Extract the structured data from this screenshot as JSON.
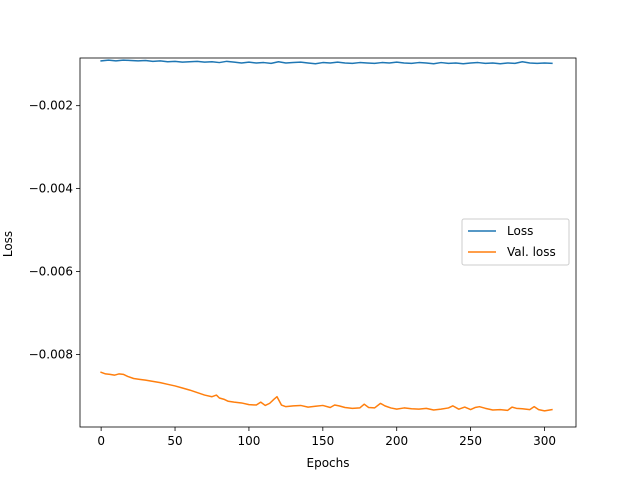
{
  "chart_data": {
    "type": "line",
    "title": "",
    "xlabel": "Epochs",
    "ylabel": "Loss",
    "xlim": [
      -14.3,
      321.3
    ],
    "ylim": [
      -0.00975,
      -0.00085
    ],
    "x_ticks": [
      0,
      50,
      100,
      150,
      200,
      250,
      300
    ],
    "x_tick_labels": [
      "0",
      "50",
      "100",
      "150",
      "200",
      "250",
      "300"
    ],
    "y_ticks": [
      -0.002,
      -0.004,
      -0.006,
      -0.008
    ],
    "y_tick_labels": [
      "−0.002",
      "−0.004",
      "−0.006",
      "−0.008"
    ],
    "grid": false,
    "legend_position": "center-right",
    "series": [
      {
        "name": "Loss",
        "color": "#1f77b4",
        "x": [
          0,
          5,
          10,
          15,
          20,
          25,
          30,
          35,
          40,
          45,
          50,
          55,
          60,
          65,
          70,
          75,
          80,
          85,
          90,
          95,
          100,
          105,
          110,
          115,
          120,
          125,
          130,
          135,
          140,
          145,
          150,
          155,
          160,
          165,
          170,
          175,
          180,
          185,
          190,
          195,
          200,
          205,
          210,
          215,
          220,
          225,
          230,
          235,
          240,
          245,
          250,
          255,
          260,
          265,
          270,
          275,
          280,
          285,
          290,
          295,
          300,
          305
        ],
        "values": [
          -0.00092,
          -0.0009,
          -0.00092,
          -0.0009,
          -0.00091,
          -0.00092,
          -0.00091,
          -0.00093,
          -0.00092,
          -0.00094,
          -0.00093,
          -0.00095,
          -0.00094,
          -0.00093,
          -0.00095,
          -0.00094,
          -0.00096,
          -0.00093,
          -0.00095,
          -0.00097,
          -0.00095,
          -0.00097,
          -0.00096,
          -0.00098,
          -0.00094,
          -0.00097,
          -0.00096,
          -0.00095,
          -0.00097,
          -0.00099,
          -0.00096,
          -0.00097,
          -0.00095,
          -0.00097,
          -0.00098,
          -0.00096,
          -0.00097,
          -0.00098,
          -0.00096,
          -0.00097,
          -0.00095,
          -0.00097,
          -0.00098,
          -0.00096,
          -0.00097,
          -0.00099,
          -0.00096,
          -0.00098,
          -0.00097,
          -0.00099,
          -0.00097,
          -0.00096,
          -0.00098,
          -0.00097,
          -0.00099,
          -0.00097,
          -0.00098,
          -0.00094,
          -0.00097,
          -0.00098,
          -0.00097,
          -0.00098
        ]
      },
      {
        "name": "Val. loss",
        "color": "#ff7f0e",
        "x": [
          0,
          3,
          6,
          9,
          12,
          15,
          18,
          22,
          26,
          30,
          35,
          40,
          45,
          50,
          55,
          60,
          65,
          70,
          75,
          78,
          80,
          83,
          86,
          90,
          95,
          100,
          105,
          108,
          111,
          114,
          117,
          119,
          122,
          125,
          130,
          135,
          140,
          145,
          150,
          155,
          158,
          161,
          165,
          170,
          175,
          178,
          181,
          185,
          189,
          192,
          196,
          200,
          205,
          210,
          215,
          220,
          225,
          230,
          235,
          238,
          242,
          246,
          250,
          253,
          256,
          260,
          265,
          270,
          275,
          278,
          281,
          285,
          290,
          293,
          296,
          300,
          305
        ],
        "values": [
          -0.00843,
          -0.00847,
          -0.00848,
          -0.0085,
          -0.00847,
          -0.00848,
          -0.00853,
          -0.00858,
          -0.0086,
          -0.00862,
          -0.00865,
          -0.00868,
          -0.00872,
          -0.00876,
          -0.00881,
          -0.00886,
          -0.00892,
          -0.00898,
          -0.00902,
          -0.00898,
          -0.00905,
          -0.00908,
          -0.00913,
          -0.00915,
          -0.00917,
          -0.00921,
          -0.00922,
          -0.00915,
          -0.00923,
          -0.00918,
          -0.00908,
          -0.00902,
          -0.00922,
          -0.00926,
          -0.00924,
          -0.00923,
          -0.00927,
          -0.00925,
          -0.00923,
          -0.00928,
          -0.00922,
          -0.00924,
          -0.00928,
          -0.0093,
          -0.00929,
          -0.0092,
          -0.00928,
          -0.00929,
          -0.00918,
          -0.00924,
          -0.00929,
          -0.00932,
          -0.00929,
          -0.00931,
          -0.00932,
          -0.0093,
          -0.00934,
          -0.00932,
          -0.00929,
          -0.00924,
          -0.00932,
          -0.00927,
          -0.00933,
          -0.00928,
          -0.00926,
          -0.0093,
          -0.00934,
          -0.00933,
          -0.00935,
          -0.00927,
          -0.0093,
          -0.00931,
          -0.00933,
          -0.00926,
          -0.00933,
          -0.00936,
          -0.00933
        ]
      }
    ]
  }
}
